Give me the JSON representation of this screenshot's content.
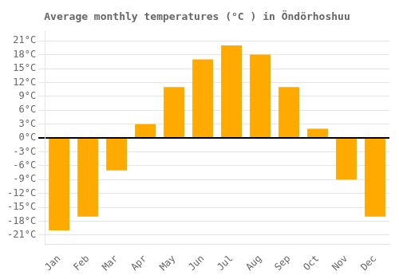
{
  "chart_data": {
    "type": "bar",
    "title": "Average monthly temperatures (°C ) in Öndörhoshuu",
    "categories": [
      "Jan",
      "Feb",
      "Mar",
      "Apr",
      "May",
      "Jun",
      "Jul",
      "Aug",
      "Sep",
      "Oct",
      "Nov",
      "Dec"
    ],
    "values": [
      -20,
      -17,
      -7,
      3,
      11,
      17,
      20,
      18,
      11,
      2,
      -9,
      -17
    ],
    "color": "#FFAA00",
    "ylim": [
      -23,
      23
    ],
    "yticks": [
      {
        "value": -21,
        "label": "-21°C"
      },
      {
        "value": -18,
        "label": "-18°C"
      },
      {
        "value": -15,
        "label": "-15°C"
      },
      {
        "value": -12,
        "label": "-12°C"
      },
      {
        "value": -9,
        "label": "-9°C"
      },
      {
        "value": -6,
        "label": "-6°C"
      },
      {
        "value": -3,
        "label": "-3°C"
      },
      {
        "value": 0,
        "label": "0°C"
      },
      {
        "value": 3,
        "label": "3°C"
      },
      {
        "value": 6,
        "label": "6°C"
      },
      {
        "value": 9,
        "label": "9°C"
      },
      {
        "value": 12,
        "label": "12°C"
      },
      {
        "value": 15,
        "label": "15°C"
      },
      {
        "value": 18,
        "label": "18°C"
      },
      {
        "value": 21,
        "label": "21°C"
      }
    ],
    "grid": true
  }
}
